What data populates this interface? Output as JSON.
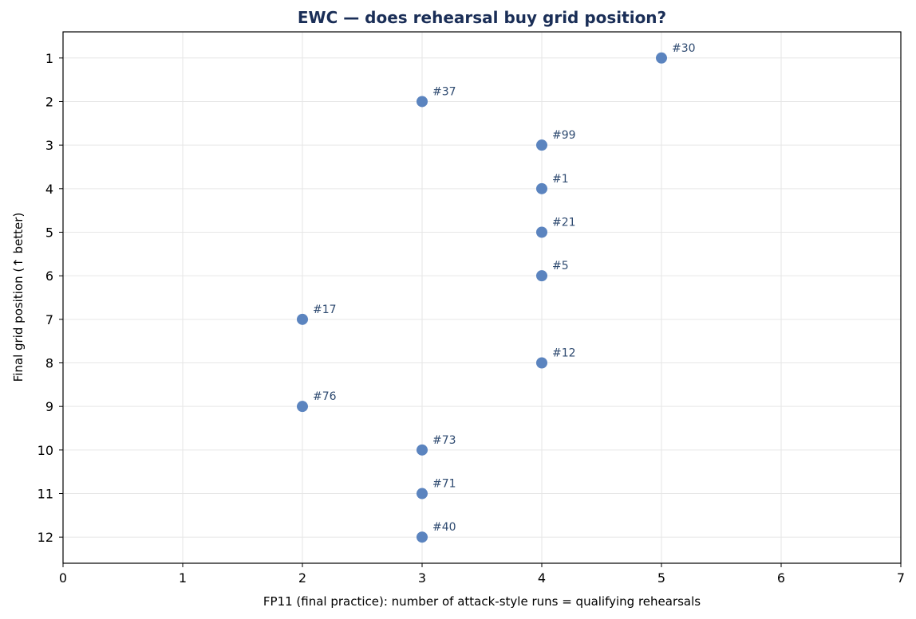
{
  "chart_data": {
    "type": "scatter",
    "title": "EWC — does rehearsal buy grid position?",
    "xlabel": "FP11 (final practice): number of attack-style runs = qualifying rehearsals",
    "ylabel": "Final grid position (↑ better)",
    "xlim": [
      0,
      7
    ],
    "ylim": [
      12.6,
      0.4
    ],
    "y_inverted": true,
    "x_ticks": [
      0,
      1,
      2,
      3,
      4,
      5,
      6,
      7
    ],
    "y_ticks": [
      1,
      2,
      3,
      4,
      5,
      6,
      7,
      8,
      9,
      10,
      11,
      12
    ],
    "grid": true,
    "marker_color": "#5b84bf",
    "label_color": "#2e4a70",
    "title_color": "#1a2e57",
    "points": [
      {
        "label": "#30",
        "x": 5,
        "y": 1
      },
      {
        "label": "#37",
        "x": 3,
        "y": 2
      },
      {
        "label": "#99",
        "x": 4,
        "y": 3
      },
      {
        "label": "#1",
        "x": 4,
        "y": 4
      },
      {
        "label": "#21",
        "x": 4,
        "y": 5
      },
      {
        "label": "#5",
        "x": 4,
        "y": 6
      },
      {
        "label": "#17",
        "x": 2,
        "y": 7
      },
      {
        "label": "#12",
        "x": 4,
        "y": 8
      },
      {
        "label": "#76",
        "x": 2,
        "y": 9
      },
      {
        "label": "#73",
        "x": 3,
        "y": 10
      },
      {
        "label": "#71",
        "x": 3,
        "y": 11
      },
      {
        "label": "#40",
        "x": 3,
        "y": 12
      }
    ]
  }
}
